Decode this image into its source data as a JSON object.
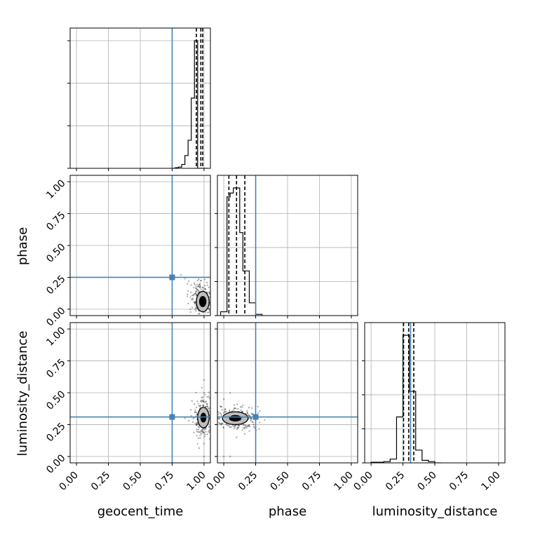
{
  "chart_data": {
    "type": "corner",
    "parameters": [
      "geocent_time",
      "phase",
      "luminosity_distance"
    ],
    "truths": [
      0.75,
      0.25,
      0.31
    ],
    "truth_color": "#4682b4",
    "range": [
      -0.05,
      1.05
    ],
    "tick_values": [
      0,
      0.25,
      0.5,
      0.75,
      1
    ],
    "tick_labels": [
      "0.00",
      "0.25",
      "0.50",
      "0.75",
      "1.00"
    ],
    "xlabels": [
      "geocent_time",
      "phase",
      "luminosity_distance"
    ],
    "ylabels": [
      "",
      "phase",
      "luminosity_distance"
    ],
    "grid": true,
    "histograms": [
      {
        "parameter": "geocent_time",
        "bin_edges": [
          0.75,
          0.775,
          0.8,
          0.825,
          0.85,
          0.875,
          0.9,
          0.925,
          0.95,
          0.975,
          1.0,
          1.025
        ],
        "counts": [
          0,
          0.005,
          0.01,
          0.03,
          0.1,
          0.22,
          0.55,
          1.0,
          0.0,
          0.0,
          0.0
        ],
        "quantiles": [
          0.94,
          0.975,
          0.99
        ]
      },
      {
        "parameter": "phase",
        "bin_edges": [
          -0.025,
          0.0,
          0.025,
          0.05,
          0.075,
          0.1,
          0.125,
          0.15,
          0.175,
          0.2,
          0.225,
          0.25,
          0.275,
          0.3
        ],
        "counts": [
          0.03,
          0.03,
          0.93,
          0.96,
          1.0,
          1.0,
          0.65,
          0.35,
          0.35,
          0.1,
          0.1,
          0.01,
          0.01
        ],
        "quantiles": [
          0.04,
          0.1,
          0.165
        ]
      },
      {
        "parameter": "luminosity_distance",
        "bin_edges": [
          0.0,
          0.05,
          0.1,
          0.15,
          0.175,
          0.2,
          0.225,
          0.25,
          0.275,
          0.3,
          0.325,
          0.35,
          0.375,
          0.4,
          0.45,
          0.5,
          0.55
        ],
        "counts": [
          0.005,
          0.005,
          0.01,
          0.03,
          0.03,
          0.36,
          0.36,
          1.0,
          1.0,
          0.56,
          0.56,
          0.1,
          0.1,
          0.02,
          0.01,
          0.0
        ],
        "quantiles": [
          0.255,
          0.295,
          0.335
        ]
      }
    ],
    "scatter_panels": [
      {
        "x": "geocent_time",
        "y": "phase",
        "center": [
          0.99,
          0.06
        ],
        "contour_levels": [
          {
            "rx": 0.025,
            "ry": 0.04,
            "fill": "#000000"
          },
          {
            "rx": 0.05,
            "ry": 0.08,
            "fill": "#bdbdbd"
          }
        ],
        "cloud_points": [
          [
            0.82,
            0.27
          ],
          [
            0.85,
            0.24
          ],
          [
            0.88,
            0.22
          ],
          [
            0.9,
            0.19
          ],
          [
            0.92,
            0.17
          ],
          [
            0.94,
            0.14
          ],
          [
            0.96,
            0.11
          ],
          [
            0.97,
            0.09
          ],
          [
            0.98,
            0.07
          ],
          [
            1.0,
            0.04
          ],
          [
            0.87,
            0.2
          ],
          [
            0.93,
            0.12
          ]
        ]
      },
      {
        "x": "geocent_time",
        "y": "luminosity_distance",
        "center": [
          0.995,
          0.305
        ],
        "contour_levels": [
          {
            "rx": 0.02,
            "ry": 0.035,
            "fill": "#000000"
          },
          {
            "rx": 0.045,
            "ry": 0.08,
            "fill": "#bdbdbd"
          }
        ],
        "cloud_points": [
          [
            0.85,
            0.3
          ],
          [
            0.9,
            0.32
          ],
          [
            0.95,
            0.29
          ],
          [
            1.0,
            0.6
          ],
          [
            1.0,
            0.5
          ],
          [
            1.0,
            0.1
          ],
          [
            1.0,
            0.0
          ],
          [
            0.97,
            0.25
          ],
          [
            0.93,
            0.35
          ],
          [
            0.88,
            0.28
          ]
        ]
      },
      {
        "x": "phase",
        "y": "luminosity_distance",
        "center": [
          0.09,
          0.3
        ],
        "contour_levels": [
          {
            "rx": 0.045,
            "ry": 0.022,
            "fill": "#000000"
          },
          {
            "rx": 0.1,
            "ry": 0.05,
            "fill": "#bdbdbd"
          }
        ],
        "cloud_points": [
          [
            0.0,
            0.45
          ],
          [
            0.05,
            0.5
          ],
          [
            0.1,
            0.15
          ],
          [
            0.2,
            0.2
          ],
          [
            0.25,
            0.33
          ],
          [
            0.0,
            0.0
          ],
          [
            0.05,
            0.0
          ],
          [
            0.15,
            0.4
          ],
          [
            0.22,
            0.38
          ],
          [
            0.02,
            0.25
          ]
        ]
      }
    ]
  }
}
